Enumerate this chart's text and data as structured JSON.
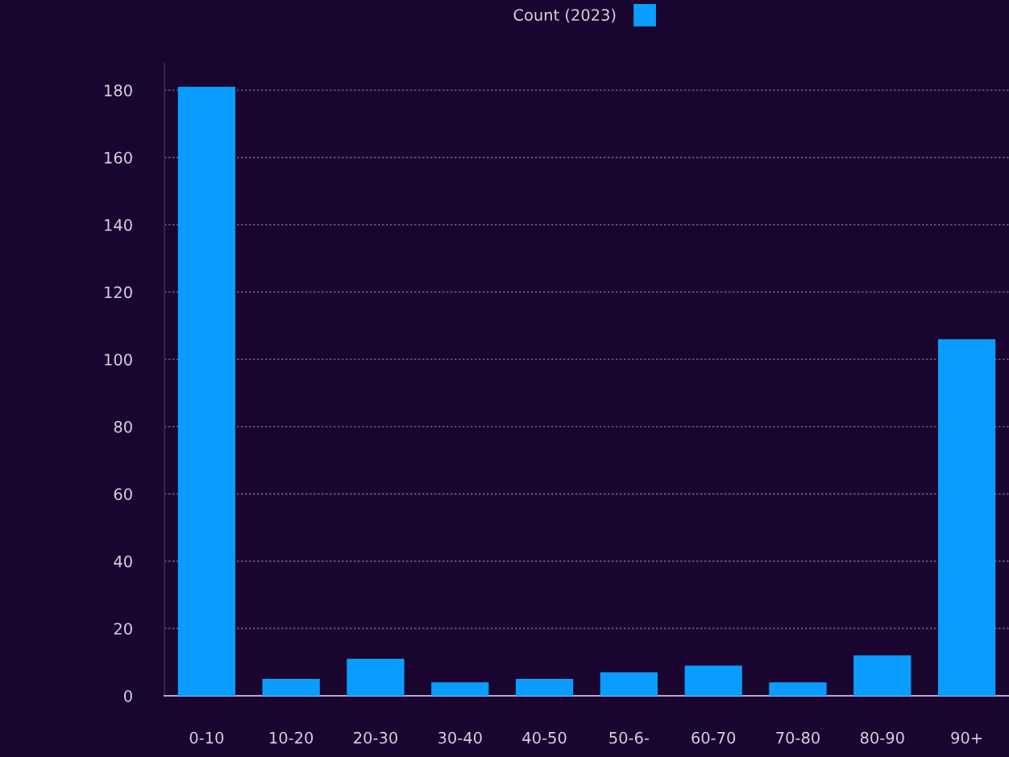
{
  "chart_data": {
    "type": "bar",
    "categories": [
      "0-10",
      "10-20",
      "20-30",
      "30-40",
      "40-50",
      "50-6-",
      "60-70",
      "70-80",
      "80-90",
      "90+"
    ],
    "series": [
      {
        "name": "Count (2023)",
        "color": "#0a9dff",
        "values": [
          181,
          5,
          11,
          4,
          5,
          7,
          9,
          4,
          12,
          106
        ]
      }
    ],
    "ylim": [
      0,
      188
    ],
    "yticks": [
      0,
      20,
      40,
      60,
      80,
      100,
      120,
      140,
      160,
      180
    ],
    "grid": "y",
    "legend": "top"
  }
}
